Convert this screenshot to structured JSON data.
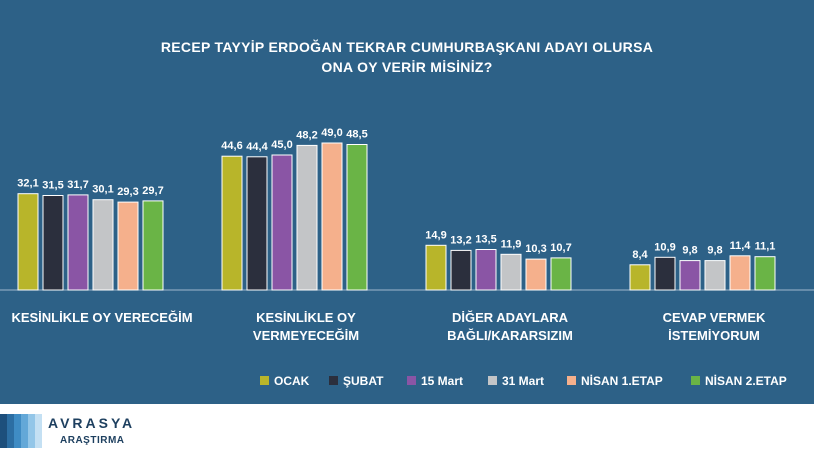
{
  "title": {
    "line1": "RECEP TAYYİP ERDOĞAN TEKRAR CUMHURBAŞKANI ADAYI OLURSA",
    "line2": "ONA OY VERİR MİSİNİZ?"
  },
  "chart_data": {
    "type": "bar",
    "title": "RECEP TAYYİP ERDOĞAN TEKRAR CUMHURBAŞKANI ADAYI OLURSA ONA OY VERİR MİSİNİZ?",
    "categories": [
      [
        "KESİNLİKLE OY VERECEĞİM"
      ],
      [
        "KESİNLİKLE OY",
        "VERMEYECEĞİM"
      ],
      [
        "DİĞER ADAYLARA",
        "BAĞLI/KARARSIZIM"
      ],
      [
        "CEVAP VERMEK",
        "İSTEMİYORUM"
      ]
    ],
    "series": [
      {
        "name": "OCAK",
        "color": "#b8b52a",
        "values": [
          32.1,
          44.6,
          14.9,
          8.4
        ],
        "labels": [
          "32,1",
          "44,6",
          "14,9",
          "8,4"
        ]
      },
      {
        "name": "ŞUBAT",
        "color": "#2b2f3d",
        "values": [
          31.5,
          44.4,
          13.2,
          10.9
        ],
        "labels": [
          "31,5",
          "44,4",
          "13,2",
          "10,9"
        ]
      },
      {
        "name": "15 Mart",
        "color": "#8a55a5",
        "values": [
          31.7,
          45.0,
          13.5,
          9.8
        ],
        "labels": [
          "31,7",
          "45,0",
          "13,5",
          "9,8"
        ]
      },
      {
        "name": "31 Mart",
        "color": "#c3c5c7",
        "values": [
          30.1,
          48.2,
          11.9,
          9.8
        ],
        "labels": [
          "30,1",
          "48,2",
          "11,9",
          "9,8"
        ]
      },
      {
        "name": "NİSAN 1.ETAP",
        "color": "#f5b08c",
        "values": [
          29.3,
          49.0,
          10.3,
          11.4
        ],
        "labels": [
          "29,3",
          "49,0",
          "10,3",
          "11,4"
        ]
      },
      {
        "name": "NİSAN 2.ETAP",
        "color": "#6ab446",
        "values": [
          29.7,
          48.5,
          10.7,
          11.1
        ],
        "labels": [
          "29,7",
          "48,5",
          "10,7",
          "11,1"
        ]
      }
    ],
    "ylim": [
      0,
      50
    ],
    "grid": false,
    "legend_position": "bottom-right"
  },
  "logo": {
    "name": "AVRASYA",
    "sub": "ARAŞTIRMA",
    "colors": [
      "#1d4f7c",
      "#2c6ea3",
      "#3f8cc4",
      "#63a8d8",
      "#93c6e8",
      "#c4e0f3"
    ]
  }
}
